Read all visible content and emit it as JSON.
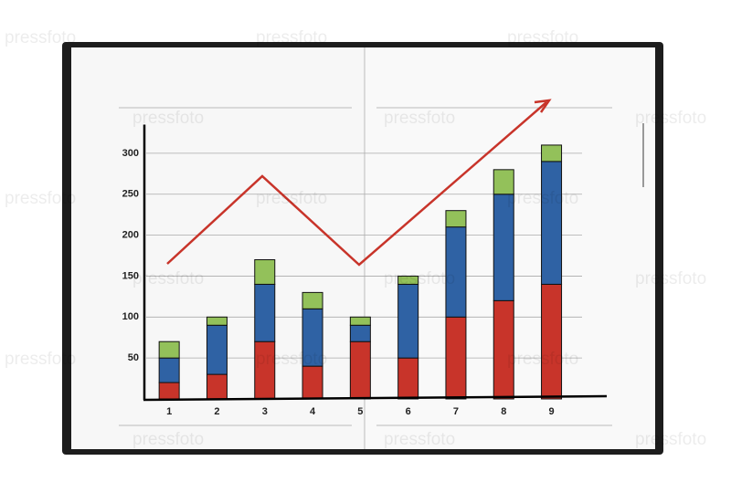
{
  "watermark": "pressfoto",
  "chart_data": {
    "type": "stacked_bar",
    "categories": [
      "1",
      "2",
      "3",
      "4",
      "5",
      "6",
      "7",
      "8",
      "9"
    ],
    "series": [
      {
        "color": "#c8342a",
        "values": [
          20,
          30,
          70,
          40,
          70,
          50,
          100,
          120,
          140
        ]
      },
      {
        "color": "#2f62a4",
        "values": [
          30,
          60,
          70,
          70,
          20,
          90,
          110,
          130,
          150
        ]
      },
      {
        "color": "#93c15a",
        "values": [
          20,
          10,
          30,
          20,
          10,
          10,
          20,
          30,
          20
        ]
      }
    ],
    "ylim": [
      0,
      335
    ],
    "yticks": [
      50,
      100,
      150,
      200,
      250,
      300
    ],
    "grid": true
  }
}
